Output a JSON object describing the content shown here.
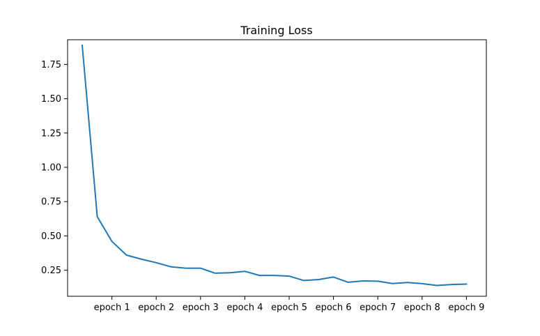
{
  "chart_data": {
    "type": "line",
    "title": "Training Loss",
    "xlabel": "",
    "ylabel": "",
    "x_tick_labels": [
      "epoch 1",
      "epoch 2",
      "epoch 3",
      "epoch 4",
      "epoch 5",
      "epoch 6",
      "epoch 7",
      "epoch 8",
      "epoch 9"
    ],
    "y_tick_labels": [
      "0.25",
      "0.50",
      "0.75",
      "1.00",
      "1.25",
      "1.50",
      "1.75"
    ],
    "y_ticks": [
      0.25,
      0.5,
      0.75,
      1.0,
      1.25,
      1.5,
      1.75
    ],
    "ylim": [
      0.06,
      1.93
    ],
    "grid": false,
    "series": [
      {
        "color": "#1f77b4",
        "x": [
          0.33,
          0.67,
          1.0,
          1.33,
          1.67,
          2.0,
          2.33,
          2.67,
          3.0,
          3.33,
          3.67,
          4.0,
          4.33,
          4.67,
          5.0,
          5.33,
          5.67,
          6.0,
          6.33,
          6.67,
          7.0,
          7.33,
          7.67,
          8.0,
          8.33,
          8.67,
          9.0
        ],
        "values": [
          1.89,
          0.64,
          0.46,
          0.36,
          0.33,
          0.305,
          0.275,
          0.265,
          0.265,
          0.228,
          0.232,
          0.242,
          0.212,
          0.212,
          0.207,
          0.175,
          0.182,
          0.2,
          0.162,
          0.172,
          0.17,
          0.153,
          0.16,
          0.152,
          0.139,
          0.146,
          0.149
        ]
      }
    ]
  }
}
